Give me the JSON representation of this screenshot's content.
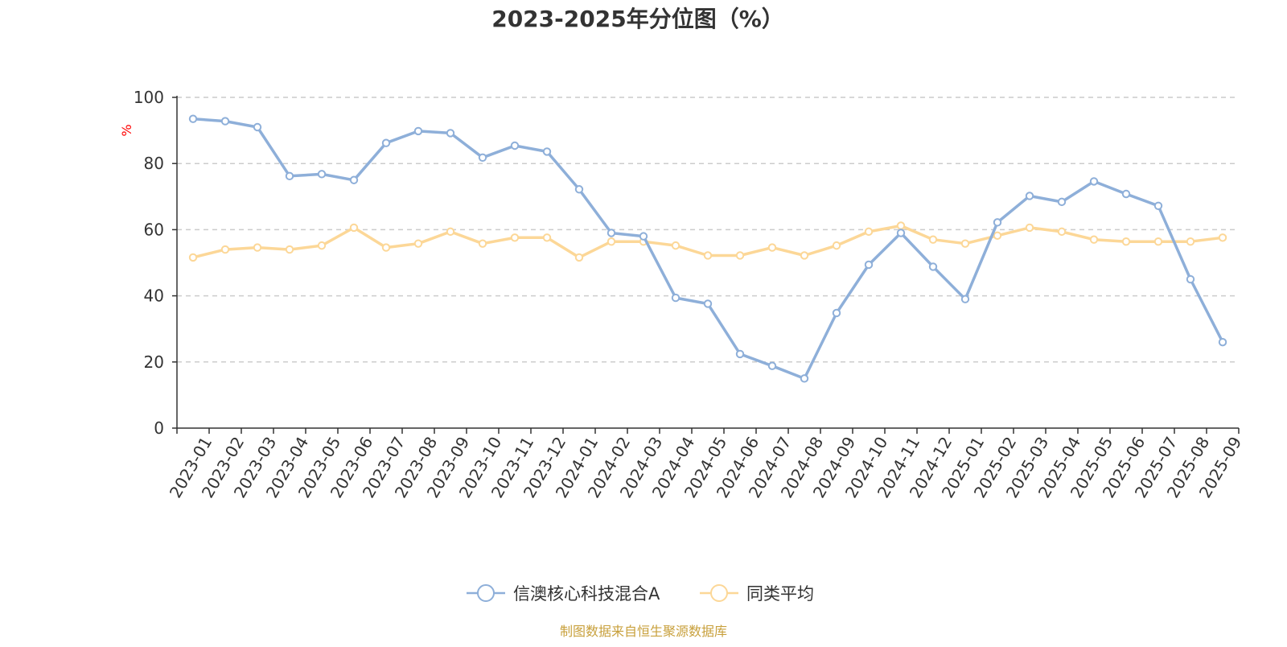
{
  "chart_data": {
    "type": "line",
    "title": "2023-2025年分位图（%）",
    "xlabel": "",
    "ylabel": "%",
    "ylim": [
      0,
      100
    ],
    "yticks": [
      0,
      20,
      40,
      60,
      80,
      100
    ],
    "grid": true,
    "legend_position": "bottom-center",
    "categories": [
      "2023-01",
      "2023-02",
      "2023-03",
      "2023-04",
      "2023-05",
      "2023-06",
      "2023-07",
      "2023-08",
      "2023-09",
      "2023-10",
      "2023-11",
      "2023-12",
      "2024-01",
      "2024-02",
      "2024-03",
      "2024-04",
      "2024-05",
      "2024-06",
      "2024-07",
      "2024-08",
      "2024-09",
      "2024-10",
      "2024-11",
      "2024-12",
      "2025-01",
      "2025-02",
      "2025-03",
      "2025-04",
      "2025-05",
      "2025-06",
      "2025-07",
      "2025-08",
      "2025-09"
    ],
    "series": [
      {
        "name": "信澳核心科技混合A",
        "color": "#8eafd9",
        "values": [
          93.5,
          92.8,
          91.0,
          76.2,
          76.8,
          75.0,
          86.2,
          89.8,
          89.2,
          81.8,
          85.4,
          83.6,
          72.2,
          59.0,
          58.0,
          39.4,
          37.6,
          22.4,
          18.8,
          15.0,
          34.8,
          49.4,
          59.0,
          48.8,
          39.0,
          62.2,
          70.2,
          68.4,
          74.6,
          70.8,
          67.2,
          45.0,
          26.0
        ]
      },
      {
        "name": "同类平均",
        "color": "#fcd797",
        "values": [
          51.6,
          54.0,
          54.6,
          54.0,
          55.2,
          60.6,
          54.6,
          55.8,
          59.4,
          55.8,
          57.6,
          57.6,
          51.6,
          56.4,
          56.4,
          55.2,
          52.2,
          52.2,
          54.6,
          52.2,
          55.2,
          59.4,
          61.2,
          57.0,
          55.8,
          58.2,
          60.6,
          59.4,
          57.0,
          56.4,
          56.4,
          56.4,
          57.6
        ]
      }
    ],
    "source_note": "制图数据来自恒生聚源数据库"
  }
}
